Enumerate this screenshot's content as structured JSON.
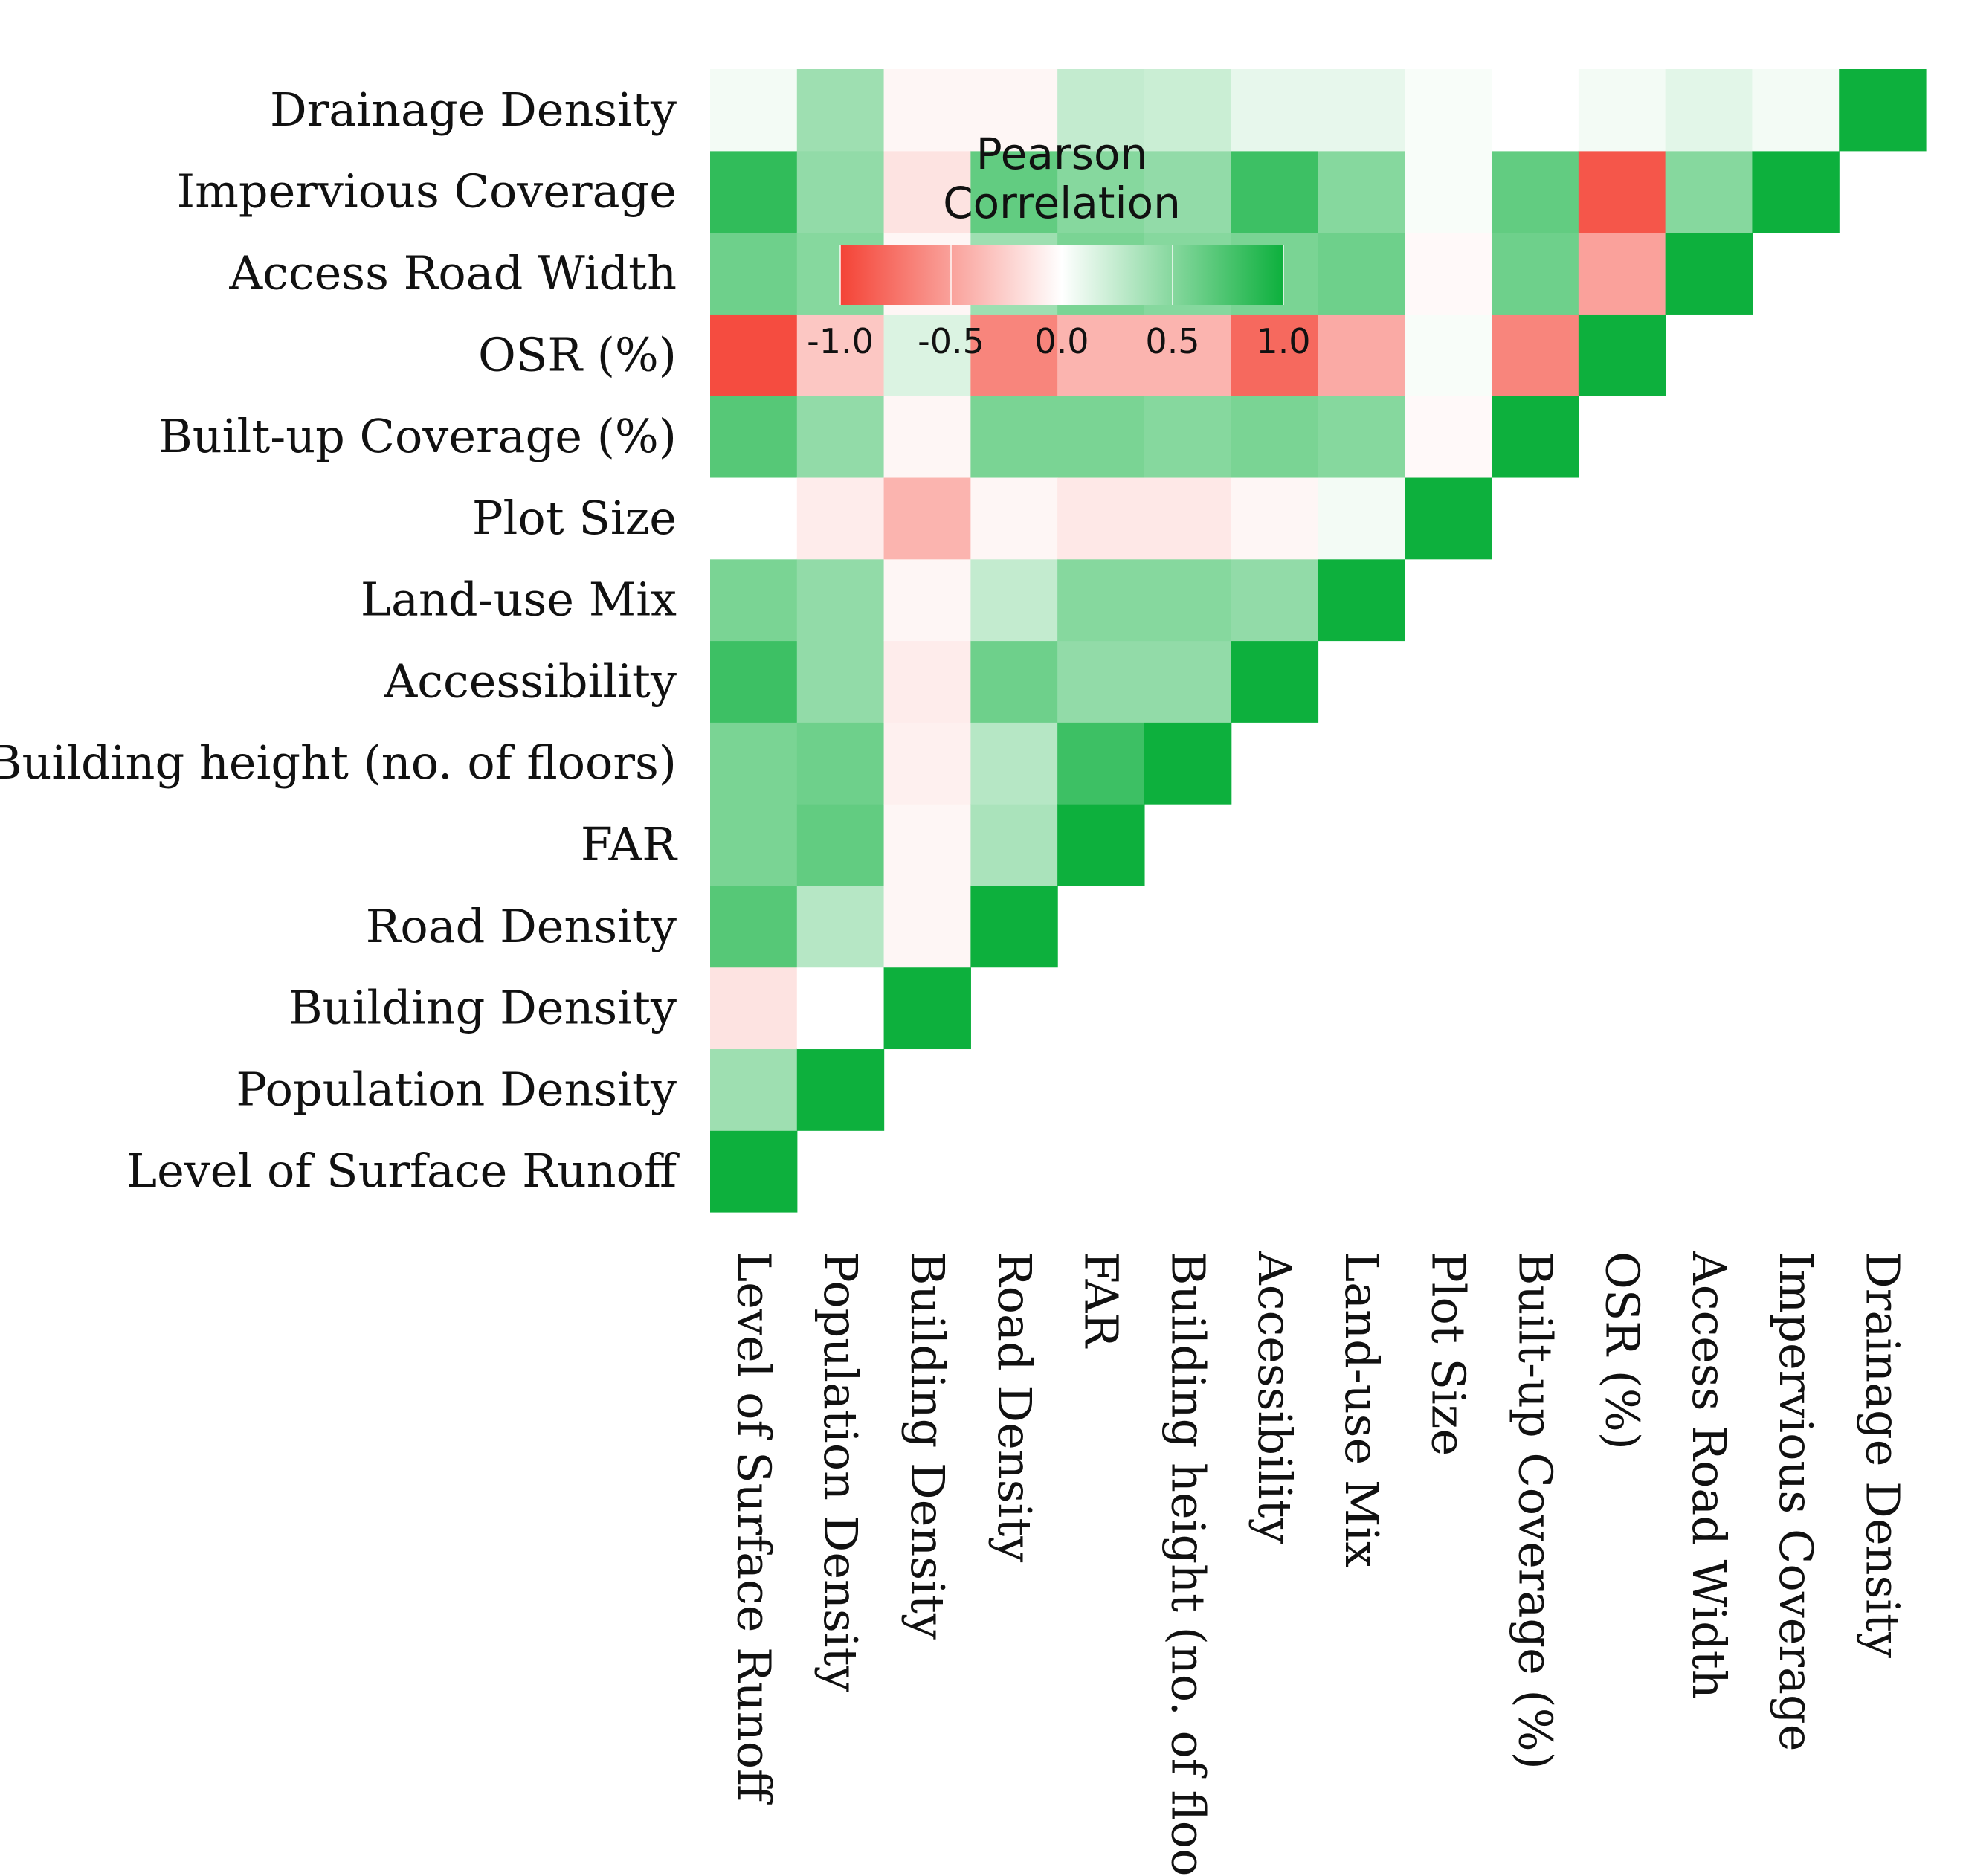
{
  "chart_data": {
    "type": "heatmap",
    "title": "",
    "variables": [
      "Level of Surface Runoff",
      "Population Density",
      "Building Density",
      "Road Density",
      "FAR",
      "Building height (no. of floors)",
      "Accessibility",
      "Land-use Mix",
      "Plot Size",
      "Built-up Coverage (%)",
      "OSR (%)",
      "Access Road Width",
      "Impervious Coverage",
      "Drainage Density"
    ],
    "matrix": [
      [
        1.0,
        0.4,
        -0.15,
        0.7,
        0.55,
        0.55,
        0.8,
        0.55,
        0.0,
        0.7,
        -0.95,
        0.6,
        0.85,
        0.05
      ],
      [
        null,
        1.0,
        0.0,
        0.3,
        0.65,
        0.6,
        0.45,
        0.45,
        -0.1,
        0.45,
        -0.3,
        0.5,
        0.45,
        0.4
      ],
      [
        null,
        null,
        1.0,
        -0.05,
        -0.05,
        -0.08,
        -0.1,
        -0.05,
        -0.4,
        -0.05,
        0.15,
        -0.05,
        -0.15,
        -0.05
      ],
      [
        null,
        null,
        null,
        1.0,
        0.35,
        0.3,
        0.6,
        0.25,
        -0.05,
        0.55,
        -0.65,
        0.4,
        0.65,
        -0.05
      ],
      [
        null,
        null,
        null,
        null,
        1.0,
        0.8,
        0.45,
        0.5,
        -0.12,
        0.55,
        -0.4,
        0.55,
        0.5,
        0.25
      ],
      [
        null,
        null,
        null,
        null,
        null,
        1.0,
        0.45,
        0.5,
        -0.12,
        0.5,
        -0.4,
        0.5,
        0.45,
        0.22
      ],
      [
        null,
        null,
        null,
        null,
        null,
        null,
        1.0,
        0.45,
        -0.05,
        0.55,
        -0.8,
        0.55,
        0.8,
        0.1
      ],
      [
        null,
        null,
        null,
        null,
        null,
        null,
        null,
        1.0,
        0.05,
        0.5,
        -0.45,
        0.6,
        0.5,
        0.1
      ],
      [
        null,
        null,
        null,
        null,
        null,
        null,
        null,
        null,
        1.0,
        -0.03,
        0.03,
        -0.03,
        0.03,
        0.03
      ],
      [
        null,
        null,
        null,
        null,
        null,
        null,
        null,
        null,
        null,
        1.0,
        -0.65,
        0.6,
        0.65,
        0.0
      ],
      [
        null,
        null,
        null,
        null,
        null,
        null,
        null,
        null,
        null,
        null,
        1.0,
        -0.5,
        -0.9,
        0.05
      ],
      [
        null,
        null,
        null,
        null,
        null,
        null,
        null,
        null,
        null,
        null,
        null,
        1.0,
        0.5,
        0.12
      ],
      [
        null,
        null,
        null,
        null,
        null,
        null,
        null,
        null,
        null,
        null,
        null,
        null,
        1.0,
        0.05
      ],
      [
        null,
        null,
        null,
        null,
        null,
        null,
        null,
        null,
        null,
        null,
        null,
        null,
        null,
        1.0
      ]
    ],
    "legend": {
      "title_line1": "Pearson",
      "title_line2": "Correlation",
      "ticks": [
        "-1.0",
        "-0.5",
        "0.0",
        "0.5",
        "1.0"
      ],
      "tick_values": [
        -1.0,
        -0.5,
        0.0,
        0.5,
        1.0
      ],
      "range": [
        -1.0,
        1.0
      ],
      "placement": "top-left"
    },
    "colors": {
      "negative": "#f44336",
      "neutral": "#ffffff",
      "positive": "#0db03d"
    },
    "layout": "lower-triangle, first variable at bottom-left, columns ordered left to right"
  }
}
